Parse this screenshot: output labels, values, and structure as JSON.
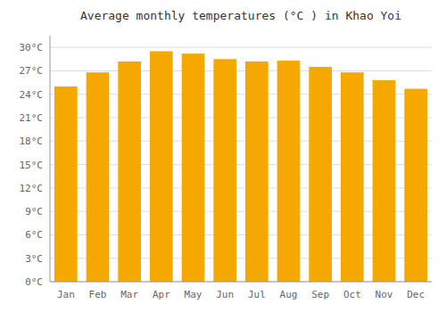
{
  "chart_data": {
    "type": "bar",
    "title": "Average monthly temperatures (°C ) in Khao Yoi",
    "categories": [
      "Jan",
      "Feb",
      "Mar",
      "Apr",
      "May",
      "Jun",
      "Jul",
      "Aug",
      "Sep",
      "Oct",
      "Nov",
      "Dec"
    ],
    "values": [
      25.0,
      26.8,
      28.2,
      29.5,
      29.2,
      28.5,
      28.2,
      28.3,
      27.5,
      26.8,
      25.8,
      24.7
    ],
    "color": "#F5A800",
    "ylim": [
      0,
      31.5
    ],
    "yticks": [
      {
        "value": 0,
        "label": "0°C"
      },
      {
        "value": 3,
        "label": "3°C"
      },
      {
        "value": 6,
        "label": "6°C"
      },
      {
        "value": 9,
        "label": "9°C"
      },
      {
        "value": 12,
        "label": "12°C"
      },
      {
        "value": 15,
        "label": "15°C"
      },
      {
        "value": 18,
        "label": "18°C"
      },
      {
        "value": 21,
        "label": "21°C"
      },
      {
        "value": 24,
        "label": "24°C"
      },
      {
        "value": 27,
        "label": "27°C"
      },
      {
        "value": 30,
        "label": "30°C"
      }
    ],
    "grid": true
  }
}
